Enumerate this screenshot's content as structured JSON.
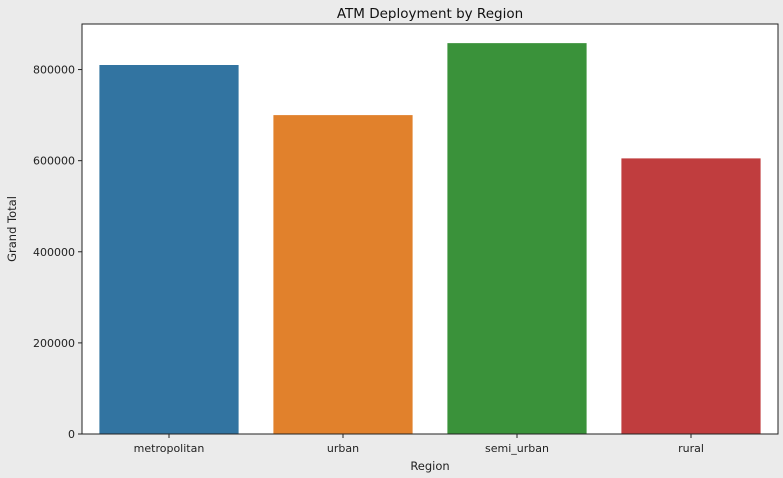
{
  "chart_data": {
    "type": "bar",
    "title": "ATM Deployment by Region",
    "xlabel": "Region",
    "ylabel": "Grand Total",
    "categories": [
      "metropolitan",
      "urban",
      "semi_urban",
      "rural"
    ],
    "values": [
      810000,
      700000,
      858000,
      605000
    ],
    "colors": [
      "#3274a1",
      "#e1812c",
      "#3a923a",
      "#c03d3e"
    ],
    "ylim": [
      0,
      900000
    ],
    "yticks": [
      0,
      200000,
      400000,
      600000,
      800000
    ],
    "ytick_labels": [
      "0",
      "200000",
      "400000",
      "600000",
      "800000"
    ],
    "grid": false,
    "legend": "none"
  }
}
